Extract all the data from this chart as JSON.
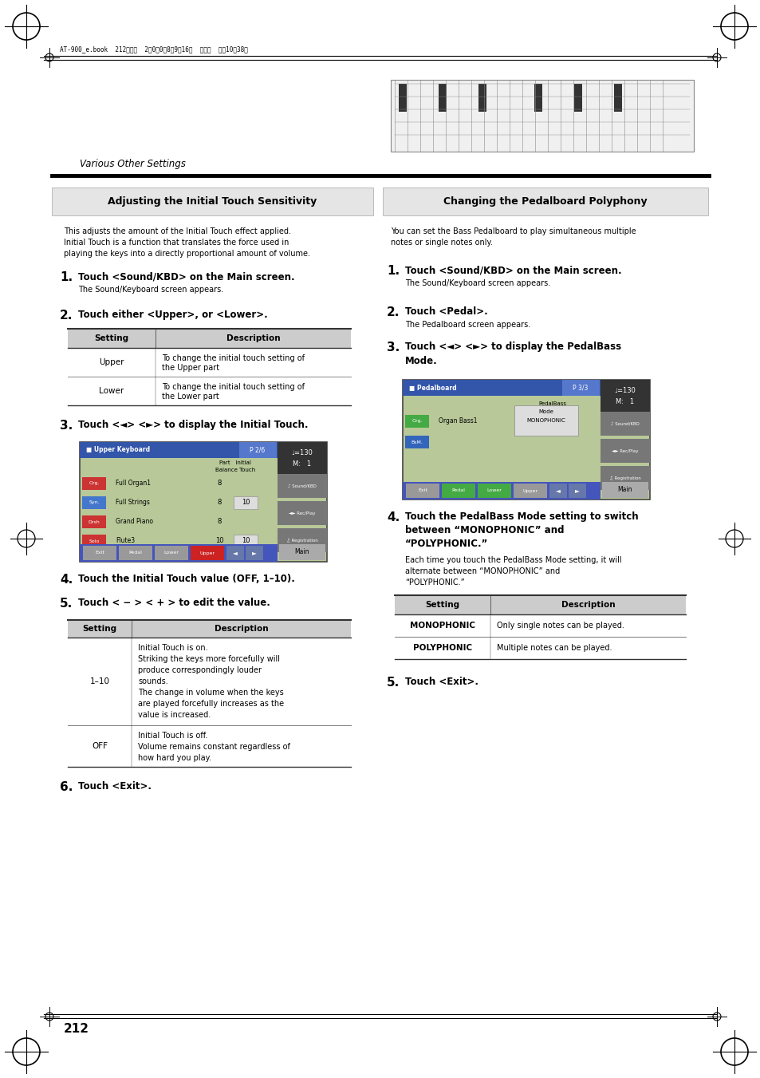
{
  "page_bg": "#ffffff",
  "page_width": 9.54,
  "page_height": 13.51,
  "header_text": "AT-900_e.book  212ページ  2〈0〈0〈8年9月16日  火曜日  午前10時38分",
  "section_label": "Various Other Settings",
  "page_number": "212",
  "left_title": "Adjusting the Initial Touch Sensitivity",
  "right_title": "Changing the Pedalboard Polyphony",
  "left_intro": "This adjusts the amount of the Initial Touch effect applied.\nInitial Touch is a function that translates the force used in\nplaying the keys into a directly proportional amount of volume.",
  "right_intro": "You can set the Bass Pedalboard to play simultaneous multiple\nnotes or single notes only.",
  "title_bg": "#e5e5e5",
  "header_bg": "#cccccc",
  "table_line_color": "#333333"
}
